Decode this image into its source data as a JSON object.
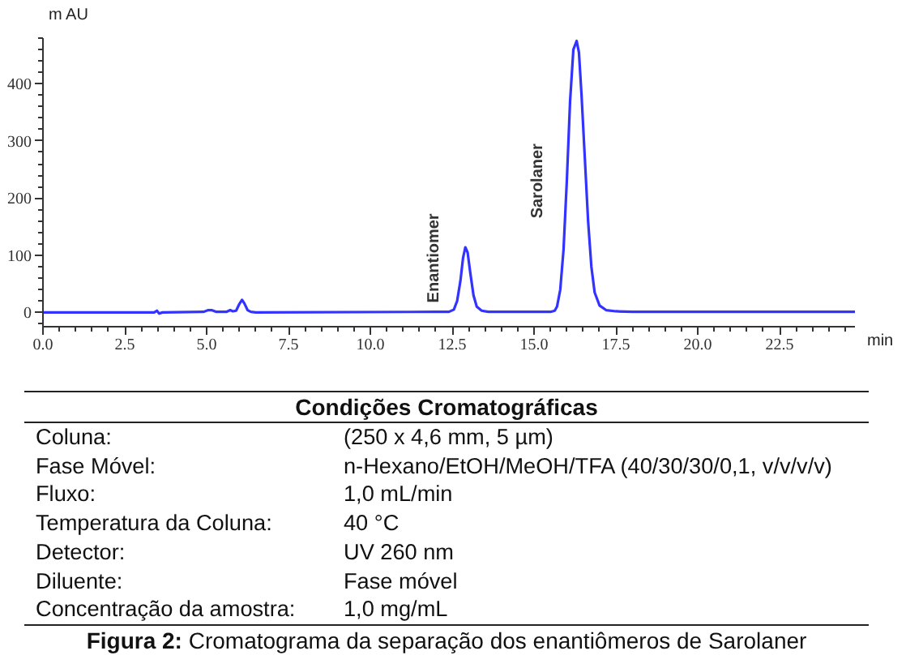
{
  "chart_data": {
    "type": "line",
    "xlabel": "min",
    "ylabel": "m AU",
    "color": "#3333ff",
    "x": [
      0,
      3.4,
      3.48,
      3.55,
      3.65,
      4.9,
      5.05,
      5.15,
      5.3,
      5.6,
      5.72,
      5.8,
      5.9,
      6.0,
      6.08,
      6.15,
      6.25,
      6.35,
      6.5,
      12.0,
      12.4,
      12.55,
      12.65,
      12.75,
      12.83,
      12.9,
      12.97,
      13.05,
      13.15,
      13.25,
      13.4,
      13.6,
      15.5,
      15.63,
      15.7,
      15.8,
      15.9,
      16.0,
      16.1,
      16.2,
      16.3,
      16.37,
      16.45,
      16.55,
      16.65,
      16.75,
      16.85,
      17.0,
      17.2,
      17.5,
      18.0,
      24.8
    ],
    "values": [
      0,
      0,
      3,
      -2,
      0,
      1,
      4,
      4,
      1,
      1,
      4,
      2,
      3,
      15,
      22,
      16,
      4,
      1,
      0,
      1,
      1,
      5,
      20,
      55,
      95,
      114,
      105,
      70,
      30,
      10,
      3,
      1,
      1,
      3,
      10,
      40,
      110,
      230,
      370,
      460,
      475,
      455,
      380,
      270,
      160,
      80,
      35,
      12,
      4,
      2,
      1,
      1
    ],
    "xlim": [
      0,
      24.8
    ],
    "ylim": [
      -25,
      480
    ],
    "xticks": [
      {
        "value": 0,
        "label": "0.0"
      },
      {
        "value": 0.5,
        "label": null
      },
      {
        "value": 1,
        "label": null
      },
      {
        "value": 1.5,
        "label": null
      },
      {
        "value": 2,
        "label": null
      },
      2.5,
      {
        "value": 3,
        "label": null
      },
      {
        "value": 3.5,
        "label": null
      },
      {
        "value": 4,
        "label": null
      },
      {
        "value": 4.5,
        "label": null
      },
      {
        "value": 5,
        "label": "5.0"
      },
      {
        "value": 5.5,
        "label": null
      },
      {
        "value": 6,
        "label": null
      },
      {
        "value": 6.5,
        "label": null
      },
      {
        "value": 7,
        "label": null
      },
      7.5,
      {
        "value": 8,
        "label": null
      },
      {
        "value": 8.5,
        "label": null
      },
      {
        "value": 9,
        "label": null
      },
      {
        "value": 9.5,
        "label": null
      },
      {
        "value": 10,
        "label": "10.0"
      },
      {
        "value": 10.5,
        "label": null
      },
      {
        "value": 11,
        "label": null
      },
      {
        "value": 11.5,
        "label": null
      },
      {
        "value": 12,
        "label": null
      },
      12.5,
      {
        "value": 13,
        "label": null
      },
      {
        "value": 13.5,
        "label": null
      },
      {
        "value": 14,
        "label": null
      },
      {
        "value": 14.5,
        "label": null
      },
      {
        "value": 15,
        "label": "15.0"
      },
      {
        "value": 15.5,
        "label": null
      },
      {
        "value": 16,
        "label": null
      },
      {
        "value": 16.5,
        "label": null
      },
      {
        "value": 17,
        "label": null
      },
      17.5,
      {
        "value": 18,
        "label": null
      },
      {
        "value": 18.5,
        "label": null
      },
      {
        "value": 19,
        "label": null
      },
      {
        "value": 19.5,
        "label": null
      },
      {
        "value": 20,
        "label": "20.0"
      },
      {
        "value": 20.5,
        "label": null
      },
      {
        "value": 21,
        "label": null
      },
      {
        "value": 21.5,
        "label": null
      },
      {
        "value": 22,
        "label": null
      },
      22.5,
      {
        "value": 23,
        "label": null
      },
      {
        "value": 23.5,
        "label": null
      },
      {
        "value": 24,
        "label": null
      },
      {
        "value": 24.5,
        "label": null
      }
    ],
    "yticks": [
      {
        "value": -20,
        "label": null
      },
      0,
      {
        "value": 20,
        "label": null
      },
      {
        "value": 40,
        "label": null
      },
      {
        "value": 60,
        "label": null
      },
      {
        "value": 80,
        "label": null
      },
      100,
      {
        "value": 120,
        "label": null
      },
      {
        "value": 140,
        "label": null
      },
      {
        "value": 160,
        "label": null
      },
      {
        "value": 180,
        "label": null
      },
      200,
      {
        "value": 220,
        "label": null
      },
      {
        "value": 240,
        "label": null
      },
      {
        "value": 260,
        "label": null
      },
      {
        "value": 280,
        "label": null
      },
      300,
      {
        "value": 320,
        "label": null
      },
      {
        "value": 340,
        "label": null
      },
      {
        "value": 360,
        "label": null
      },
      {
        "value": 380,
        "label": null
      },
      400,
      {
        "value": 420,
        "label": null
      },
      {
        "value": 440,
        "label": null
      },
      {
        "value": 460,
        "label": null
      },
      {
        "value": 480,
        "label": null
      }
    ],
    "annotations": [
      {
        "text": "Enantiomer",
        "x": 12.83,
        "y": 95
      },
      {
        "text": "Sarolaner",
        "x": 16.0,
        "y": 230
      },
      "Condições Cromatográficas",
      "Coluna:",
      "(250 x 4,6 mm, 5 µm)",
      "Fase Móvel:",
      "n-Hexano/EtOH/MeOH/TFA (40/30/30/0,1, v/v/v/v)",
      "Fluxo:",
      "1,0 mL/min",
      "Temperatura da Coluna:",
      "40 °C",
      "Detector:",
      "UV 260 nm",
      "Diluente:",
      "Fase móvel",
      "Concentração da amostra:",
      "1,0 mg/mL",
      "Figura 2: Cromatograma da separação dos enantiômeros de Sarolaner"
    ]
  }
}
